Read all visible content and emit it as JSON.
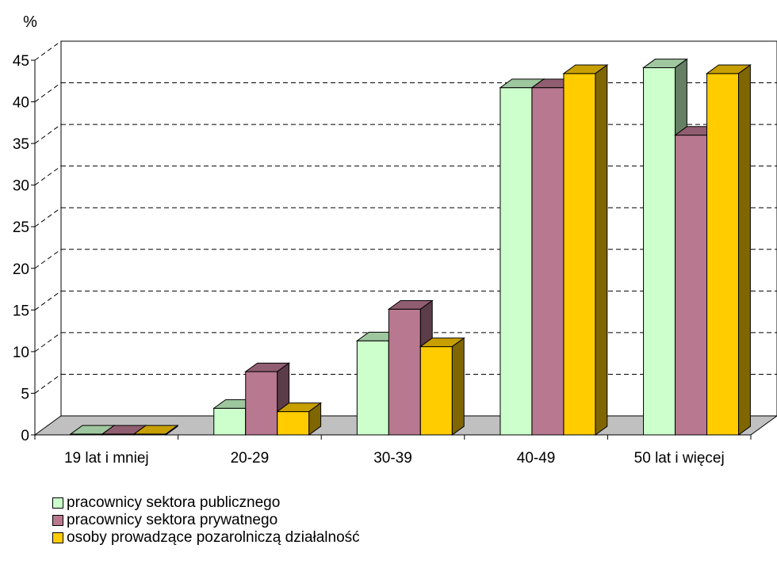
{
  "chart_data": {
    "type": "bar",
    "ylabel": "%",
    "ylim": [
      0,
      45
    ],
    "yticks": [
      "0",
      "5",
      "10",
      "15",
      "20",
      "25",
      "30",
      "35",
      "40",
      "45"
    ],
    "categories": [
      "19 lat i mniej",
      "20-29",
      "30-39",
      "40-49",
      "50 lat i więcej"
    ],
    "series": [
      {
        "name": "pracownicy sektora publicznego",
        "color": "#CCFFCC",
        "values": [
          0.1,
          3.2,
          11.3,
          41.7,
          44.1
        ]
      },
      {
        "name": "pracownicy sektora prywatnego",
        "color": "#B8788F",
        "values": [
          0.1,
          7.6,
          15.1,
          41.7,
          36.0
        ]
      },
      {
        "name": "osoby prowadzące pozarolniczą działalność",
        "color": "#FFCC00",
        "values": [
          0.1,
          2.8,
          10.6,
          43.4,
          43.4
        ]
      }
    ],
    "grid": true,
    "legend_position": "bottom-left"
  }
}
